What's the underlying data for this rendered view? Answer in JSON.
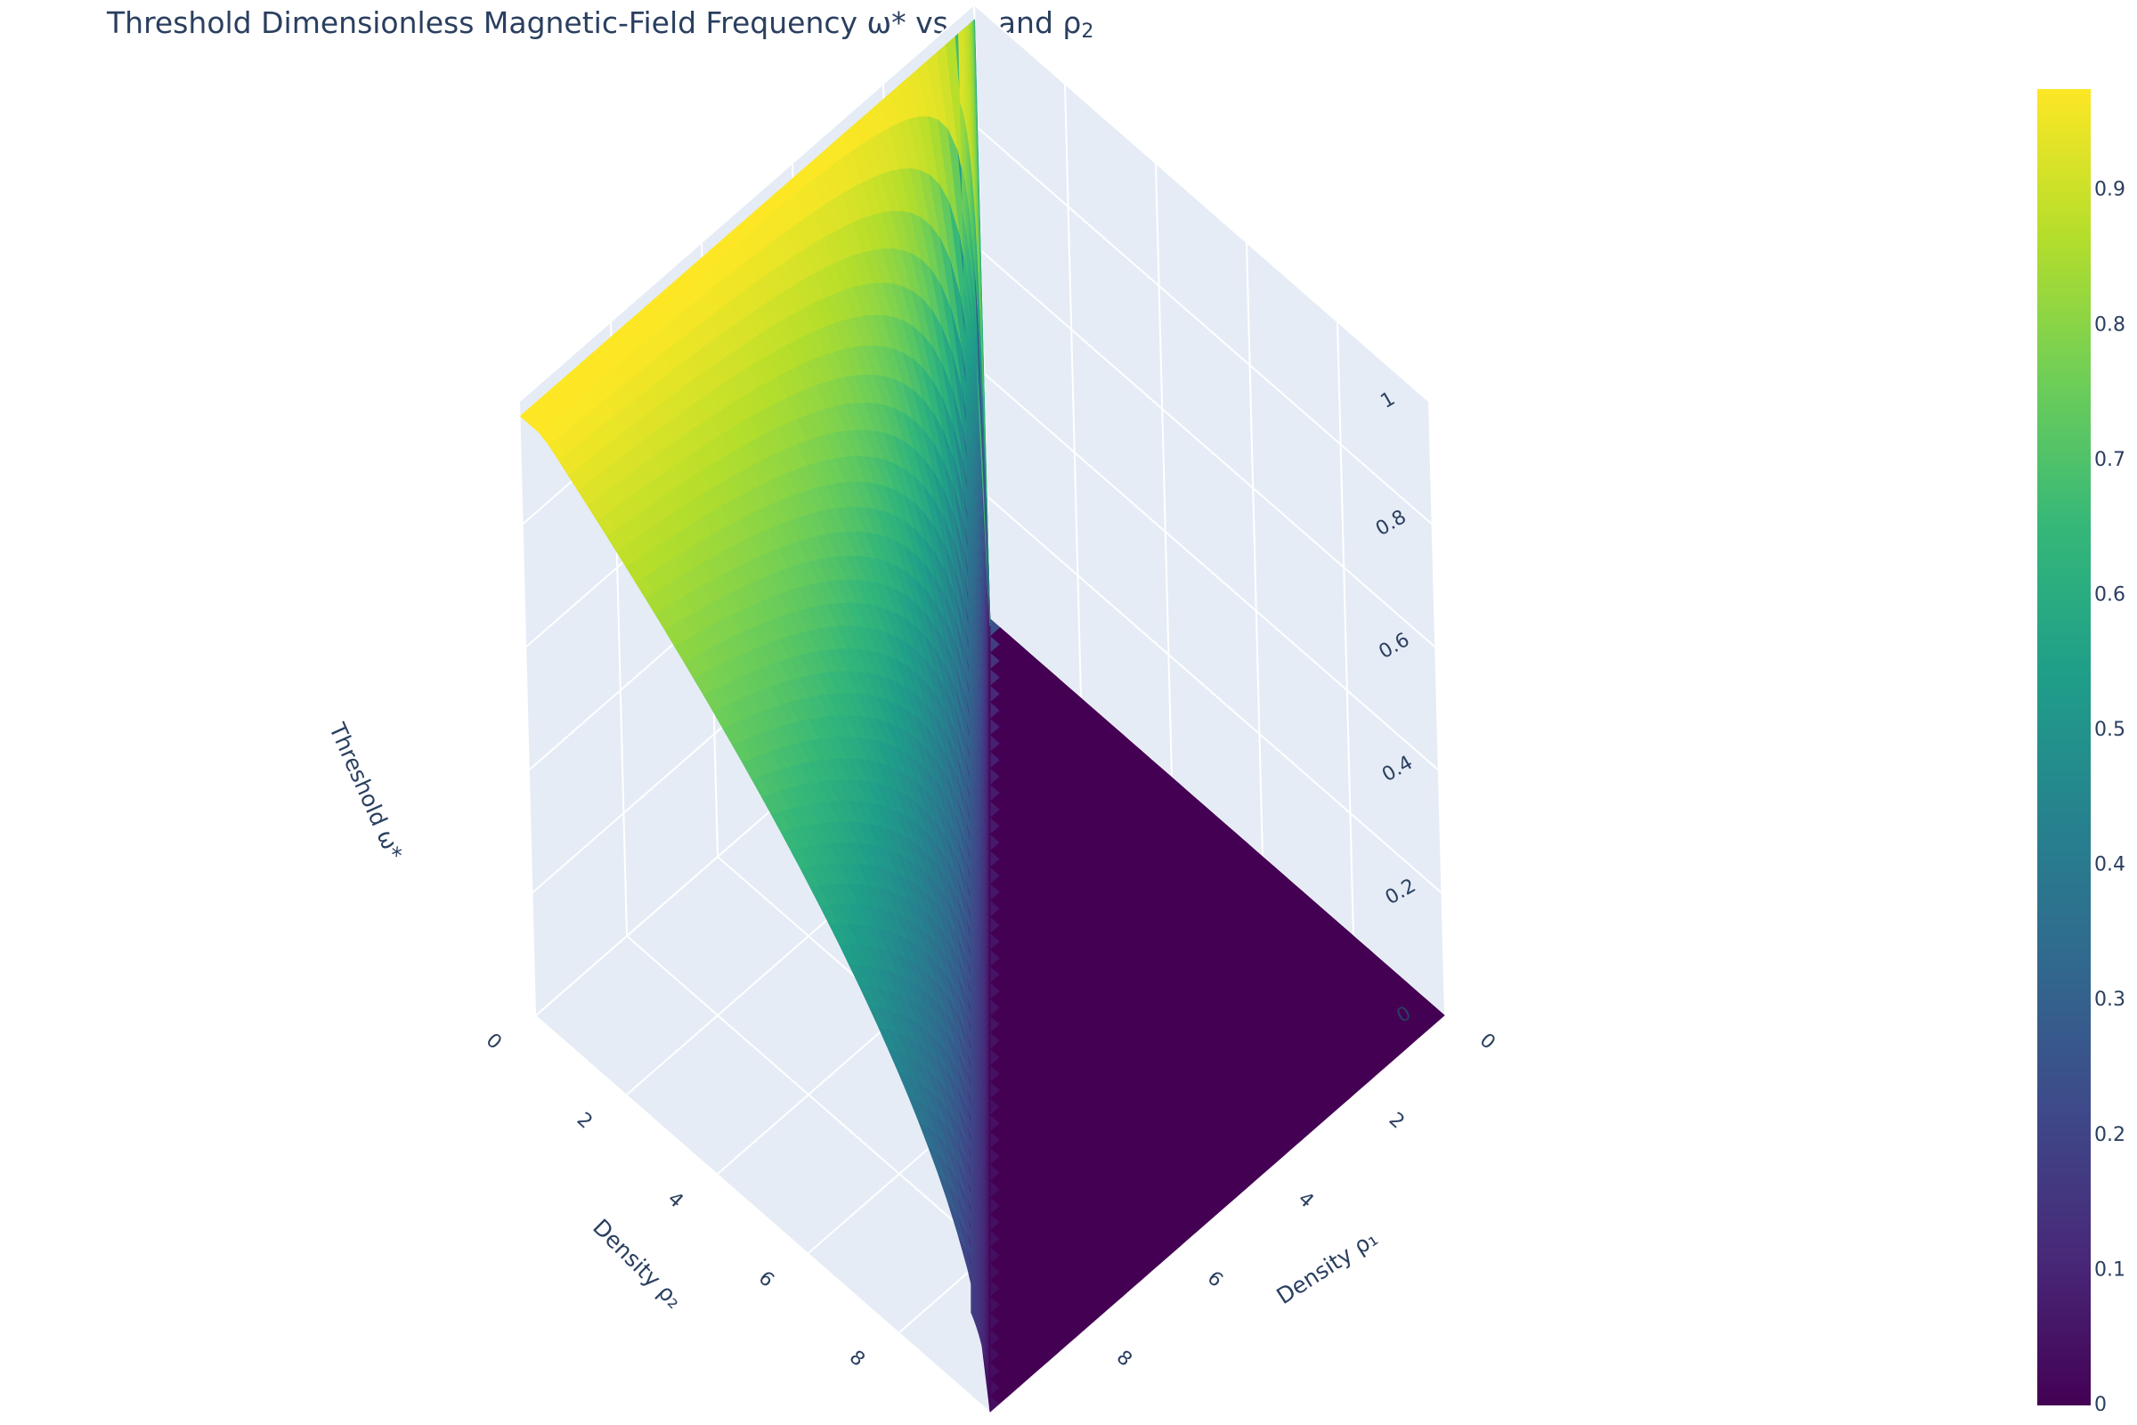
{
  "title": "Threshold Dimensionless Magnetic-Field Frequency ω* vs ρ₁ and ρ₂",
  "title_parts": {
    "main": "Threshold Dimensionless Magnetic-Field Frequency ω* vs ρ",
    "sub1": "1",
    "and": " and ρ",
    "sub2": "2"
  },
  "colors": {
    "background": "#ffffff",
    "pane": "#e5ecf6",
    "grid": "#ffffff",
    "text": "#2a3f5f",
    "colorscale": [
      "#440154",
      "#482878",
      "#3e4989",
      "#31688e",
      "#26828e",
      "#1f9e89",
      "#35b779",
      "#6ece58",
      "#b5de2b",
      "#fde725"
    ]
  },
  "chart_data": {
    "type": "surface",
    "colorscale_name": "Viridis",
    "xlabel": "Density ρ₁",
    "ylabel": "Density ρ₂",
    "zlabel": "Threshold ω*",
    "x_ticks": [
      "0",
      "2",
      "4",
      "6",
      "8"
    ],
    "y_ticks": [
      "0",
      "2",
      "4",
      "6",
      "8"
    ],
    "z_ticks": [
      "0",
      "0.2",
      "0.4",
      "0.6",
      "0.8",
      "1"
    ],
    "xlim": [
      0,
      10
    ],
    "ylim": [
      0,
      10
    ],
    "zlim": [
      0,
      1
    ],
    "surface_rule": "ω* = 0 where ρ₂ ≥ ρ₁; ω* = sqrt(1 − ρ₂/ρ₁) where ρ₁ > ρ₂",
    "zmax": 0.975,
    "colorbar": {
      "ticks": [
        "0",
        "0.1",
        "0.2",
        "0.3",
        "0.4",
        "0.5",
        "0.6",
        "0.7",
        "0.8",
        "0.9"
      ],
      "range": [
        0,
        0.975
      ],
      "position": "right"
    }
  }
}
